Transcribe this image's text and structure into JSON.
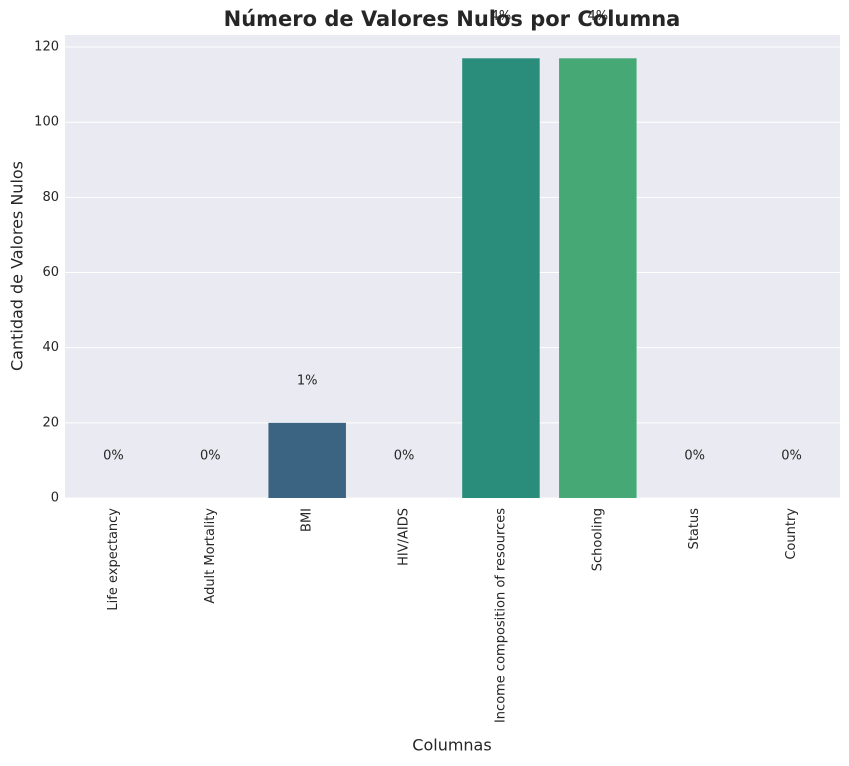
{
  "chart_data": {
    "type": "bar",
    "title": "Número de Valores Nulos por Columna",
    "x_label": "Columnas",
    "y_label": "Cantidad de Valores Nulos",
    "categories": [
      "Life expectancy",
      "Adult Mortality",
      "BMI",
      "HIV/AIDS",
      "Income composition of resources",
      "Schooling",
      "Status",
      "Country"
    ],
    "values": [
      0,
      0,
      20,
      0,
      117,
      117,
      0,
      0
    ],
    "percent_labels": [
      "0%",
      "0%",
      "1%",
      "0%",
      "4%",
      "4%",
      "0%",
      "0%"
    ],
    "colors": [
      "#482878",
      "#3e4989",
      "#3b6482",
      "#26828e",
      "#2a8c7b",
      "#45a875",
      "#86d549",
      "#c2df23"
    ],
    "ylim": [
      0,
      123.2
    ],
    "yticks": [
      0,
      20,
      40,
      60,
      80,
      100,
      120
    ],
    "grid": true
  }
}
